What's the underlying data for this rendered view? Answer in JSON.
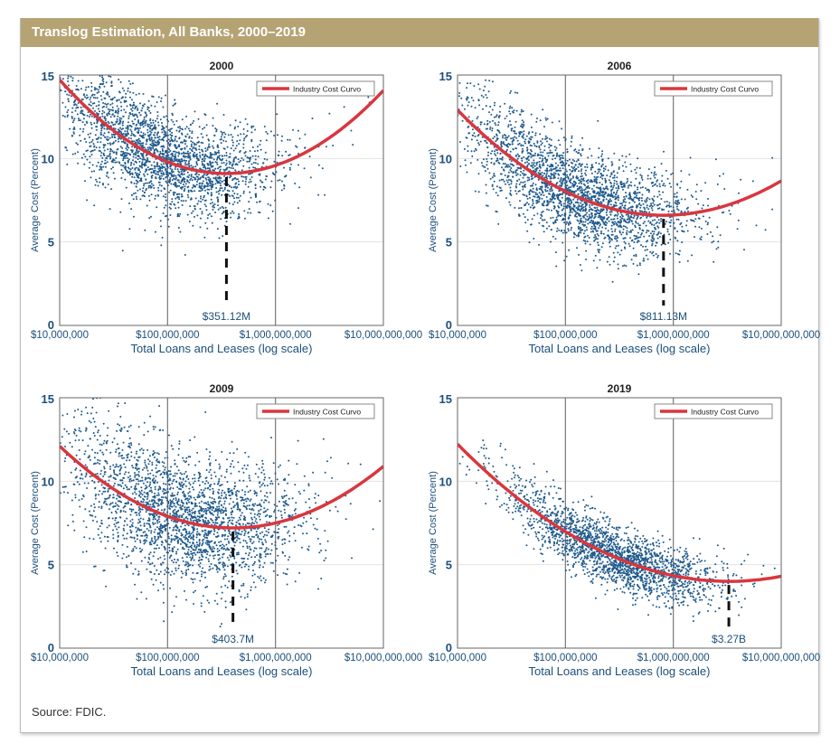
{
  "header": {
    "title": "Translog Estimation, All Banks, 2000–2019"
  },
  "source": "Source: FDIC.",
  "chart_data": [
    {
      "type": "scatter",
      "title": "2000",
      "xlabel": "Total Loans and Leases (log scale)",
      "ylabel": "Average Cost (Percent)",
      "xscale": "log",
      "xlim": [
        10000000,
        10000000000
      ],
      "ylim": [
        0,
        15
      ],
      "xticks": [
        "$10,000,000",
        "$100,000,000",
        "$1,000,000,000",
        "$10,000,000,000"
      ],
      "yticks": [
        "0",
        "5",
        "10",
        "15"
      ],
      "legend": "Industry Cost Curvo",
      "legend_position": "top-right",
      "curve": {
        "min_x": 351120000,
        "min_y": 9.1,
        "curvature": 2.35
      },
      "min_label": "$351.12M",
      "scatter": {
        "n": 2600,
        "center_log": 7.9,
        "spread_log": 0.55,
        "noise": 1.5
      }
    },
    {
      "type": "scatter",
      "title": "2006",
      "xlabel": "Total Loans and Leases (log scale)",
      "ylabel": "Average Cost (Percent)",
      "xscale": "log",
      "xlim": [
        10000000,
        10000000000
      ],
      "ylim": [
        0,
        15
      ],
      "xticks": [
        "$10,000,000",
        "$100,000,000",
        "$1,000,000,000",
        "$10,000,000,000"
      ],
      "yticks": [
        "0",
        "5",
        "10",
        "15"
      ],
      "legend": "Industry Cost Curvo",
      "legend_position": "top-right",
      "curve": {
        "min_x": 811130000,
        "min_y": 6.6,
        "curvature": 1.73
      },
      "min_label": "$811.13M",
      "scatter": {
        "n": 2600,
        "center_log": 8.1,
        "spread_log": 0.55,
        "noise": 1.4
      }
    },
    {
      "type": "scatter",
      "title": "2009",
      "xlabel": "Total Loans and Leases (log scale)",
      "ylabel": "Average Cost (Percent)",
      "xscale": "log",
      "xlim": [
        10000000,
        10000000000
      ],
      "ylim": [
        0,
        15
      ],
      "xticks": [
        "$10,000,000",
        "$100,000,000",
        "$1,000,000,000",
        "$10,000,000,000"
      ],
      "yticks": [
        "0",
        "5",
        "10",
        "15"
      ],
      "legend": "Industry Cost Curvo",
      "legend_position": "top-right",
      "curve": {
        "min_x": 403700000,
        "min_y": 7.2,
        "curvature": 1.9
      },
      "min_label": "$403.7M",
      "scatter": {
        "n": 2600,
        "center_log": 8.15,
        "spread_log": 0.55,
        "noise": 1.9
      }
    },
    {
      "type": "scatter",
      "title": "2019",
      "xlabel": "Total Loans and Leases (log scale)",
      "ylabel": "Average Cost (Percent)",
      "xscale": "log",
      "xlim": [
        10000000,
        10000000000
      ],
      "ylim": [
        0,
        15
      ],
      "xticks": [
        "$10,000,000",
        "$100,000,000",
        "$1,000,000,000",
        "$10,000,000,000"
      ],
      "yticks": [
        "0",
        "5",
        "10",
        "15"
      ],
      "legend": "Industry Cost Curvo",
      "legend_position": "top-right",
      "curve": {
        "min_x": 3270000000,
        "min_y": 4.0,
        "curvature": 1.3
      },
      "min_label": "$3.27B",
      "scatter": {
        "n": 2200,
        "center_log": 8.45,
        "spread_log": 0.5,
        "noise": 0.9
      }
    }
  ],
  "colors": {
    "header": "#b6a374",
    "dots": "#1f5a8c",
    "curve": "#d9363e",
    "text": "#1c4f7a"
  }
}
